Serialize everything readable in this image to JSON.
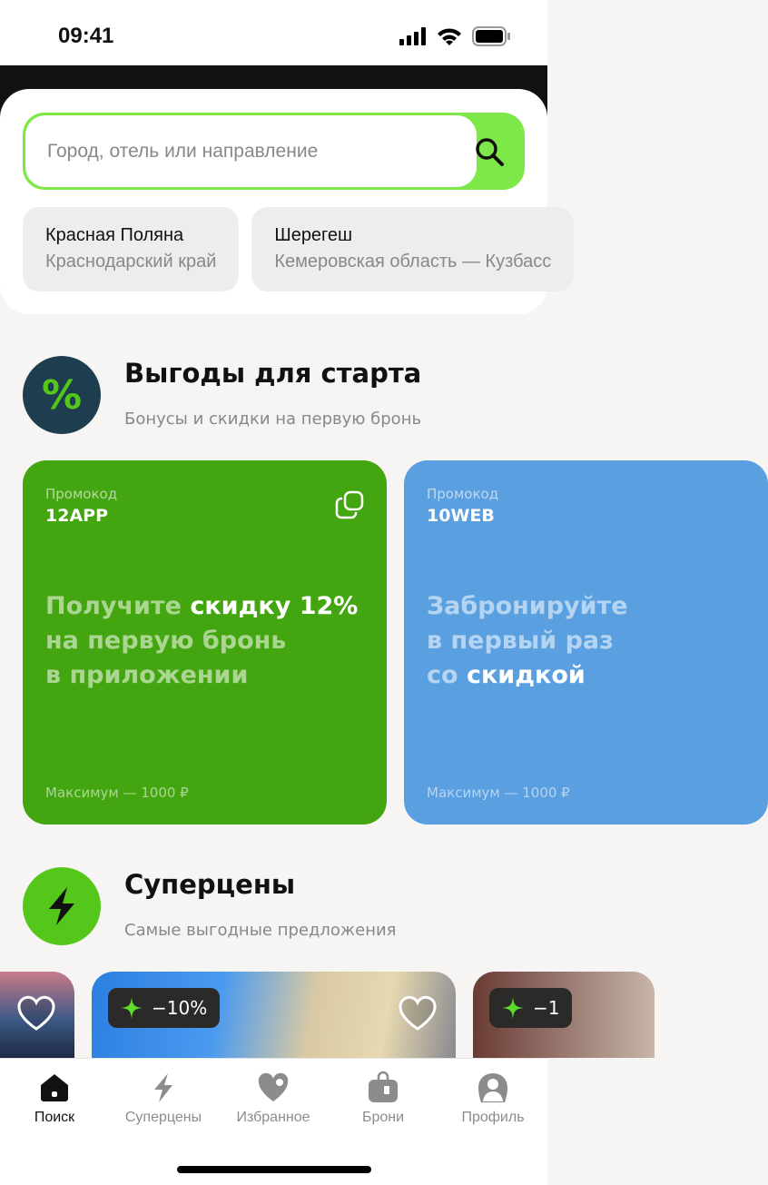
{
  "status_bar": {
    "time": "09:41"
  },
  "search": {
    "placeholder": "Город, отель или направление"
  },
  "suggestions": [
    {
      "title": "Красная Поляна",
      "subtitle": "Краснодарский край"
    },
    {
      "title": "Шерегеш",
      "subtitle": "Кемеровская область — Кузбасс"
    }
  ],
  "benefits": {
    "title": "Выгоды для старта",
    "subtitle": "Бонусы и скидки на первую бронь",
    "icon": "percent-icon",
    "icon_bg": "#1e3d4f"
  },
  "promos": [
    {
      "label": "Промокод",
      "code": "12APP",
      "msg_pre": "Получите ",
      "msg_bold": "скидку 12%",
      "msg_post_1": "на первую бронь",
      "msg_post_2": "в приложении",
      "max": "Максимум — 1000 ₽",
      "color": "#43a50f"
    },
    {
      "label": "Промокод",
      "code": "10WEB",
      "msg_1": "Забронируйте",
      "msg_2": "в первый раз",
      "msg_3_pre": "со ",
      "msg_3_bold": "скидкой",
      "max": "Максимум — 1000 ₽",
      "color": "#5a9fe0"
    }
  ],
  "superprices": {
    "title": "Суперцены",
    "subtitle": "Самые выгодные предложения",
    "icon": "lightning-icon",
    "icon_bg": "#55c71a"
  },
  "hotels": [
    {
      "badge": ""
    },
    {
      "badge": "−10%"
    },
    {
      "badge": "−1"
    }
  ],
  "tabs": [
    {
      "label": "Поиск",
      "active": true
    },
    {
      "label": "Суперцены"
    },
    {
      "label": "Избранное"
    },
    {
      "label": "Брони"
    },
    {
      "label": "Профиль"
    }
  ],
  "accent": "#7ee84a"
}
